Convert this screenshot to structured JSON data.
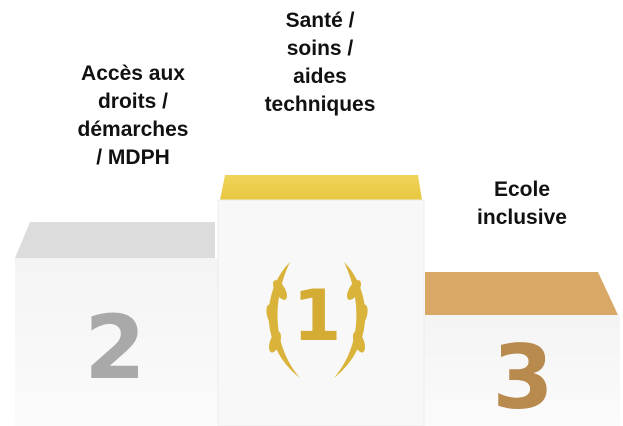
{
  "podium": [
    {
      "rank": "2",
      "lines": [
        "Accès aux",
        "droits /",
        "démarches",
        "/ MDPH"
      ]
    },
    {
      "rank": "1",
      "lines": [
        "Santé /",
        "soins /",
        "aides",
        "techniques"
      ]
    },
    {
      "rank": "3",
      "lines": [
        "Ecole",
        "inclusive"
      ]
    }
  ]
}
